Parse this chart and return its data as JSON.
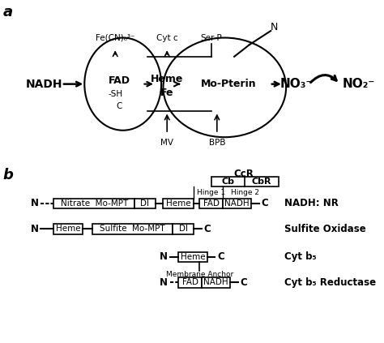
{
  "bg_color": "#ffffff",
  "label_a": "a",
  "label_b": "b",
  "panel_a": {
    "nadh_label": "NADH",
    "fad_label": "FAD",
    "fad_sublabel1": "-SH",
    "fad_sublabel2": "C",
    "heme_label": "Heme",
    "fe_label": "Fe",
    "mopterin_label": "Mo-Pterin",
    "no3_label": "NO₃⁻",
    "no2_label": "NO₂⁻",
    "fecn_label": "Fe(CN)₆³⁻",
    "cytc_label": "Cyt c",
    "serp_label": "Ser-P",
    "mv_label": "MV",
    "bpb_label": "BPB",
    "n_label": "N"
  },
  "panel_b": {
    "ccr_label": "CcR",
    "cb_label": "Cb",
    "cbr_label": "CbR",
    "hinge1_label": "Hinge 1",
    "hinge2_label": "Hinge 2",
    "row1_label": "NADH: NR",
    "row2_label": "Sulfite Oxidase",
    "row3_label": "Cyt b₅",
    "row4_label": "Cyt b₅ Reductase",
    "membrane_label": "Membrane Anchor"
  }
}
